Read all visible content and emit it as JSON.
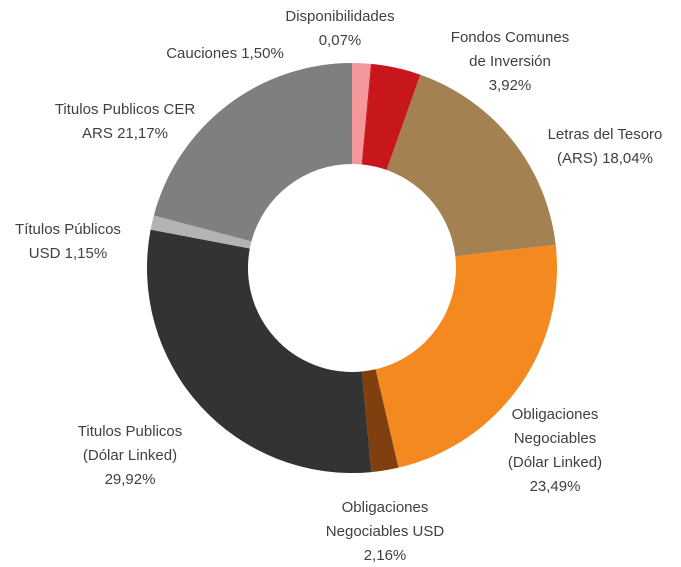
{
  "chart_data": {
    "type": "donut",
    "categories": [
      "Cauciones",
      "Disponibilidades",
      "Fondos Comunes de Inversión",
      "Letras del Tesoro (ARS)",
      "Obligaciones Negociables (Dólar Linked)",
      "Obligaciones Negociables USD",
      "Titulos Publicos (Dólar Linked)",
      "Títulos Públicos USD",
      "Titulos Publicos CER ARS"
    ],
    "values": [
      1.5,
      0.07,
      3.92,
      18.04,
      23.49,
      2.16,
      29.92,
      1.15,
      21.17
    ],
    "value_labels": [
      "1,50%",
      "0,07%",
      "3,92%",
      "18,04%",
      "23,49%",
      "2,16%",
      "29,92%",
      "1,15%",
      "21,17%"
    ],
    "colors": [
      "#f4989c",
      "#c00000",
      "#c8161d",
      "#a38152",
      "#f4891f",
      "#7f3f0e",
      "#333333",
      "#b3b3b3",
      "#7f7f7f"
    ]
  }
}
